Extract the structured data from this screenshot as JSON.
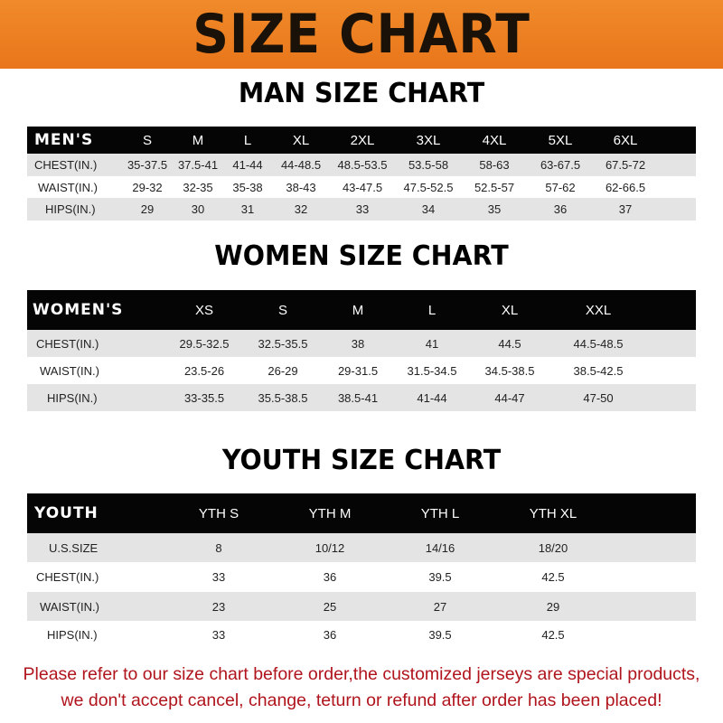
{
  "banner": "SIZE CHART",
  "men": {
    "title": "MAN SIZE CHART",
    "header": [
      "MEN'S",
      "S",
      "M",
      "L",
      "XL",
      "2XL",
      "3XL",
      "4XL",
      "5XL",
      "6XL"
    ],
    "rows": [
      [
        "CHEST(IN.)",
        "35-37.5",
        "37.5-41",
        "41-44",
        "44-48.5",
        "48.5-53.5",
        "53.5-58",
        "58-63",
        "63-67.5",
        "67.5-72"
      ],
      [
        "WAIST(IN.)",
        "29-32",
        "32-35",
        "35-38",
        "38-43",
        "43-47.5",
        "47.5-52.5",
        "52.5-57",
        "57-62",
        "62-66.5"
      ],
      [
        "HIPS(IN.)",
        "29",
        "30",
        "31",
        "32",
        "33",
        "34",
        "35",
        "36",
        "37"
      ]
    ]
  },
  "women": {
    "title": "WOMEN SIZE CHART",
    "header": [
      "WOMEN'S",
      "XS",
      "S",
      "M",
      "L",
      "XL",
      "XXL"
    ],
    "rows": [
      [
        "CHEST(IN.)",
        "29.5-32.5",
        "32.5-35.5",
        "38",
        "41",
        "44.5",
        "44.5-48.5"
      ],
      [
        "WAIST(IN.)",
        "23.5-26",
        "26-29",
        "29-31.5",
        "31.5-34.5",
        "34.5-38.5",
        "38.5-42.5"
      ],
      [
        "HIPS(IN.)",
        "33-35.5",
        "35.5-38.5",
        "38.5-41",
        "41-44",
        "44-47",
        "47-50"
      ]
    ]
  },
  "youth": {
    "title": "YOUTH SIZE CHART",
    "header": [
      "YOUTH",
      "YTH S",
      "YTH M",
      "YTH L",
      "YTH XL"
    ],
    "rows": [
      [
        "U.S.SIZE",
        "8",
        "10/12",
        "14/16",
        "18/20"
      ],
      [
        "CHEST(IN.)",
        "33",
        "36",
        "39.5",
        "42.5"
      ],
      [
        "WAIST(IN.)",
        "23",
        "25",
        "27",
        "29"
      ],
      [
        "HIPS(IN.)",
        "33",
        "36",
        "39.5",
        "42.5"
      ]
    ]
  },
  "notice": [
    "Please refer to our size chart before order,the customized jerseys are special products,",
    "we don't accept cancel, change, teturn or refund after order has been placed!"
  ],
  "colors": {
    "banner": "#ee8224",
    "notice": "#b0141c",
    "header_bg": "#050505",
    "row_gray": "#e4e4e4"
  }
}
